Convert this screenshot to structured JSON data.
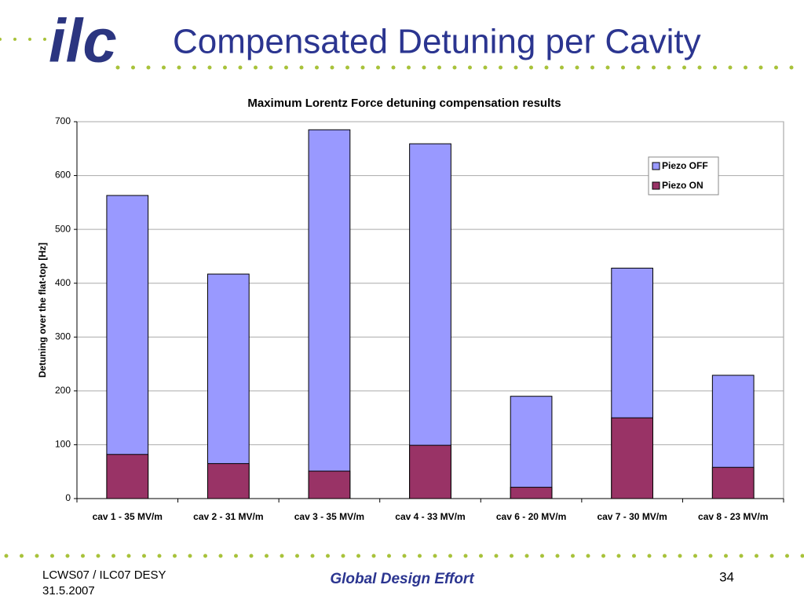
{
  "slide": {
    "logo": "ilc",
    "title": "Compensated Detuning per Cavity",
    "footer": {
      "left": [
        "LCWS07 / ILC07 DESY",
        "31.5.2007"
      ],
      "center": "Global Design Effort",
      "page": "34"
    }
  },
  "chart_data": {
    "type": "bar",
    "title": "Maximum Lorentz Force detuning compensation results",
    "y_label": "Detuning over the flat-top [Hz]",
    "categories": [
      "cav 1 - 35 MV/m",
      "cav 2 - 31 MV/m",
      "cav 3 - 35 MV/m",
      "cav 4 - 33 MV/m",
      "cav 6 - 20 MV/m",
      "cav 7 - 30 MV/m",
      "cav 8 - 23 MV/m"
    ],
    "series": [
      {
        "name": "Piezo OFF",
        "color": "#9999ff",
        "values": [
          563,
          417,
          685,
          659,
          190,
          428,
          229
        ]
      },
      {
        "name": "Piezo ON",
        "color": "#993366",
        "values": [
          82,
          65,
          51,
          99,
          21,
          150,
          58
        ]
      }
    ],
    "bar_mode": "overlay",
    "ylim": [
      0,
      700
    ],
    "yticks": [
      0,
      100,
      200,
      300,
      400,
      500,
      600,
      700
    ],
    "grid": true,
    "legend": "upper right"
  }
}
